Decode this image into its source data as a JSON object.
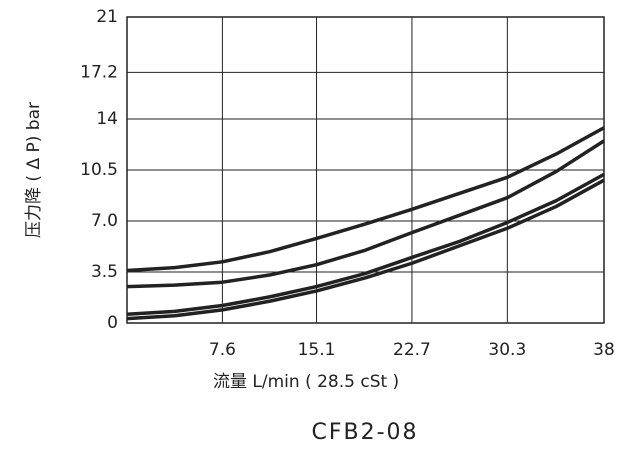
{
  "chart_data": {
    "type": "line",
    "title": "CFB2-08",
    "x_label": "流量 L/min ( 28.5 cSt )",
    "y_label": "压力降 ( Δ P) bar",
    "x": [
      0,
      3.8,
      7.6,
      11.4,
      15.1,
      19,
      22.7,
      26.5,
      30.3,
      34.2,
      38
    ],
    "series": [
      {
        "color": "#222222",
        "values": [
          3.6,
          3.8,
          4.2,
          4.9,
          5.8,
          6.8,
          7.8,
          8.9,
          10.0,
          11.6,
          13.4
        ]
      },
      {
        "color": "#222222",
        "values": [
          2.5,
          2.6,
          2.8,
          3.3,
          4.0,
          5.0,
          6.2,
          7.4,
          8.6,
          10.4,
          12.5
        ]
      },
      {
        "color": "#222222",
        "values": [
          0.6,
          0.8,
          1.2,
          1.8,
          2.5,
          3.4,
          4.5,
          5.6,
          6.9,
          8.4,
          10.2
        ]
      },
      {
        "color": "#222222",
        "values": [
          0.3,
          0.5,
          0.9,
          1.5,
          2.2,
          3.1,
          4.1,
          5.3,
          6.5,
          8.0,
          9.8
        ]
      }
    ],
    "xlim": [
      0,
      38
    ],
    "xticks": [
      7.6,
      15.1,
      22.7,
      30.3,
      38
    ],
    "ylim": [
      0,
      21
    ],
    "yticks": [
      0,
      3.5,
      {
        "value": 7,
        "label": "7.0"
      },
      10.5,
      14,
      17.2,
      21
    ],
    "grid": true
  }
}
